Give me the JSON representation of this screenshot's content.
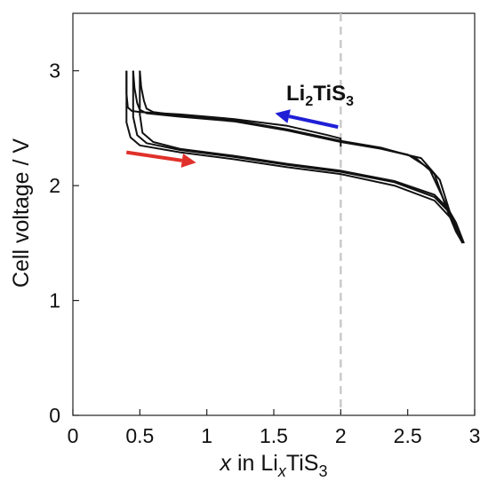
{
  "chart_data": {
    "type": "line",
    "title": "",
    "xlabel": {
      "italic": "x",
      "text": " in Li",
      "sub1": "x",
      "mid": "TiS",
      "sub2": "3"
    },
    "ylabel": "Cell voltage / V",
    "xlim": [
      0,
      3
    ],
    "ylim": [
      0,
      3.5
    ],
    "x_ticks": [
      "0",
      "0.5",
      "1",
      "1.5",
      "2",
      "2.5",
      "3"
    ],
    "y_ticks": [
      "0",
      "1",
      "2",
      "3"
    ],
    "grid": false,
    "reference_line": {
      "x": 2.0,
      "style": "dashed",
      "color": "#c8c8c8"
    },
    "annotation": {
      "text": "Li",
      "sub": "2",
      "text2": "TiS",
      "sub2": "3"
    },
    "arrows": [
      {
        "direction": "discharge",
        "color": "#e0302a",
        "from": [
          0.4,
          2.29
        ],
        "to": [
          0.92,
          2.2
        ]
      },
      {
        "direction": "charge",
        "color": "#1f1fd6",
        "from": [
          1.98,
          2.51
        ],
        "to": [
          1.51,
          2.63
        ]
      }
    ],
    "series": [
      {
        "values_x": [
          2.0,
          2.0,
          1.9,
          1.6,
          1.2,
          0.8,
          0.5,
          0.44,
          0.41,
          0.4,
          0.4
        ],
        "values_y": [
          2.34,
          2.41,
          2.44,
          2.52,
          2.58,
          2.62,
          2.64,
          2.65,
          2.68,
          2.8,
          3.0
        ]
      },
      {
        "values_x": [
          0.4,
          0.4,
          0.43,
          0.5,
          0.8,
          1.2,
          1.6,
          2.0,
          2.4,
          2.7,
          2.82,
          2.88,
          2.91
        ],
        "values_y": [
          3.0,
          2.55,
          2.42,
          2.35,
          2.29,
          2.23,
          2.16,
          2.1,
          2.0,
          1.87,
          1.72,
          1.58,
          1.5
        ]
      },
      {
        "values_x": [
          2.91,
          2.88,
          2.82,
          2.74,
          2.6,
          2.3,
          2.0,
          1.6,
          1.2,
          0.8,
          0.55,
          0.5,
          0.48,
          0.46,
          0.45
        ],
        "values_y": [
          1.5,
          1.58,
          1.75,
          2.05,
          2.24,
          2.32,
          2.38,
          2.48,
          2.56,
          2.6,
          2.63,
          2.66,
          2.72,
          2.85,
          3.0
        ]
      },
      {
        "values_x": [
          0.45,
          0.45,
          0.48,
          0.55,
          0.8,
          1.2,
          1.6,
          2.0,
          2.4,
          2.7,
          2.8,
          2.85,
          2.89,
          2.91
        ],
        "values_y": [
          3.0,
          2.6,
          2.44,
          2.37,
          2.31,
          2.25,
          2.18,
          2.12,
          2.03,
          1.9,
          1.78,
          1.65,
          1.55,
          1.5
        ]
      },
      {
        "values_x": [
          2.91,
          2.86,
          2.79,
          2.7,
          2.55,
          2.3,
          2.0,
          1.6,
          1.2,
          0.8,
          0.6,
          0.55,
          0.53,
          0.51,
          0.5
        ],
        "values_y": [
          1.5,
          1.6,
          1.8,
          2.1,
          2.25,
          2.33,
          2.39,
          2.49,
          2.57,
          2.61,
          2.64,
          2.67,
          2.74,
          2.86,
          3.0
        ]
      },
      {
        "values_x": [
          0.5,
          0.5,
          0.52,
          0.6,
          0.8,
          1.2,
          1.6,
          2.0,
          2.4,
          2.7,
          2.8,
          2.86,
          2.9,
          2.92
        ],
        "values_y": [
          3.0,
          2.62,
          2.46,
          2.38,
          2.32,
          2.26,
          2.19,
          2.13,
          2.04,
          1.92,
          1.8,
          1.68,
          1.56,
          1.5
        ]
      },
      {
        "values_x": [
          2.92,
          2.87,
          2.78,
          2.66,
          2.5,
          2.2
        ],
        "values_y": [
          1.5,
          1.62,
          1.85,
          2.15,
          2.27,
          2.35
        ]
      }
    ]
  }
}
